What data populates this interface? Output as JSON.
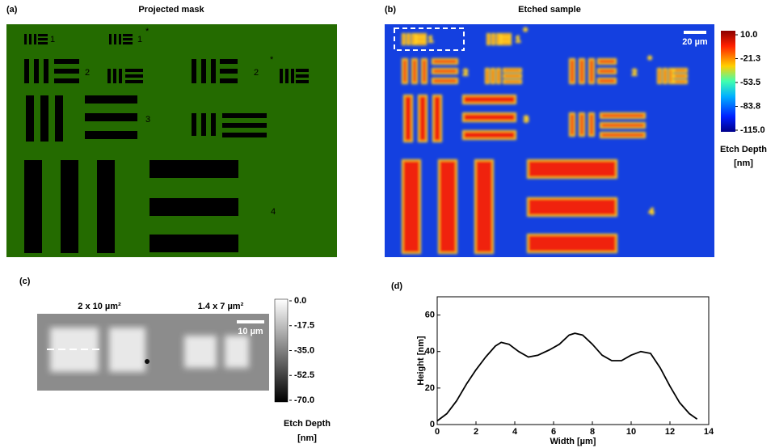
{
  "panels": {
    "a": {
      "label": "(a)",
      "title": "Projected mask",
      "digits": [
        "1",
        "1",
        "2",
        "2",
        "3",
        "4"
      ],
      "stars": [
        "*",
        "*"
      ]
    },
    "b": {
      "label": "(b)",
      "title": "Etched sample",
      "scale_bar": "20 µm",
      "colorbar_ticks": [
        "10.0",
        "-21.3",
        "-53.5",
        "-83.8",
        "-115.0"
      ],
      "colorbar_title": [
        "Etch Depth",
        "[nm]"
      ]
    },
    "c": {
      "label": "(c)",
      "titles": [
        "2 x 10 µm²",
        "1.4 x 7 µm²"
      ],
      "scale_bar": "10 µm",
      "colorbar_ticks": [
        "0.0",
        "-17.5",
        "-35.0",
        "-52.5",
        "-70.0"
      ],
      "colorbar_title": [
        "Etch Depth",
        "[nm]"
      ]
    }
  },
  "chart_data": {
    "type": "line",
    "label": "(d)",
    "xlabel": "Width [µm]",
    "ylabel": "Height [nm]",
    "x": [
      0,
      0.5,
      1,
      1.5,
      2,
      2.5,
      3,
      3.3,
      3.7,
      4.2,
      4.7,
      5.2,
      5.8,
      6.3,
      6.8,
      7.1,
      7.5,
      8,
      8.5,
      9,
      9.5,
      10,
      10.5,
      11,
      11.5,
      12,
      12.5,
      13,
      13.4
    ],
    "series": [
      {
        "color": "#000000",
        "values": [
          2,
          6,
          13,
          22,
          30,
          37,
          43,
          45,
          44,
          40,
          37,
          38,
          41,
          44,
          49,
          50,
          49,
          44,
          38,
          35,
          35,
          38,
          40,
          39,
          31,
          21,
          12,
          6,
          3
        ]
      }
    ],
    "xlim": [
      0,
      14
    ],
    "ylim": [
      0,
      70
    ],
    "xticks": [
      0,
      2,
      4,
      6,
      8,
      10,
      12,
      14
    ],
    "yticks": [
      0,
      20,
      40,
      60
    ]
  }
}
